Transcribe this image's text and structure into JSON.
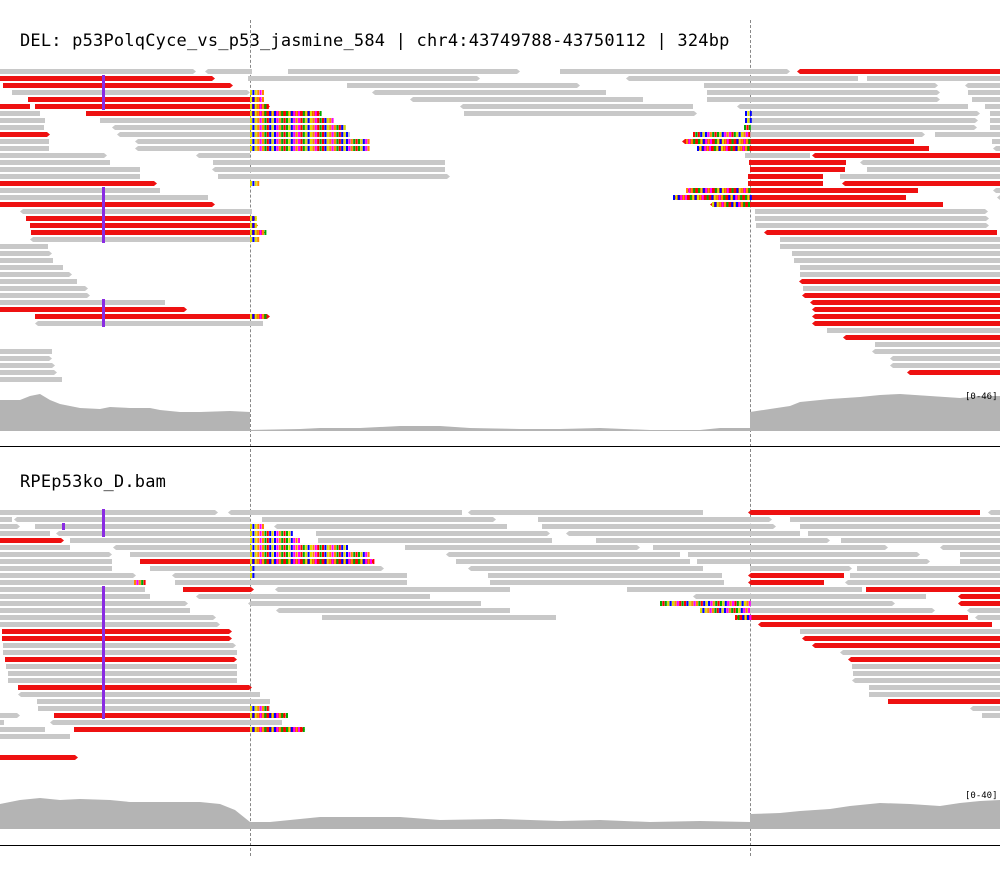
{
  "panels": {
    "top": {
      "title": "DEL: p53PolqCyce_vs_p53_jasmine_584 | chr4:43749788-43750112 | 324bp",
      "coverage_range": "[0-46]"
    },
    "bottom": {
      "title": "RPEp53ko_D.bam",
      "coverage_range": "[0-40]"
    }
  },
  "colors": {
    "read_gray": "#c8c8c8",
    "read_discordant": "#ee1111",
    "coverage": "#b4b4b4",
    "insertion": "#8a2be2",
    "mismatch_palette": [
      "#00aa00",
      "#0000ff",
      "#ff8800",
      "#ff0000",
      "#dddd00",
      "#ff00ff"
    ],
    "guide_line": "#888888"
  }
}
